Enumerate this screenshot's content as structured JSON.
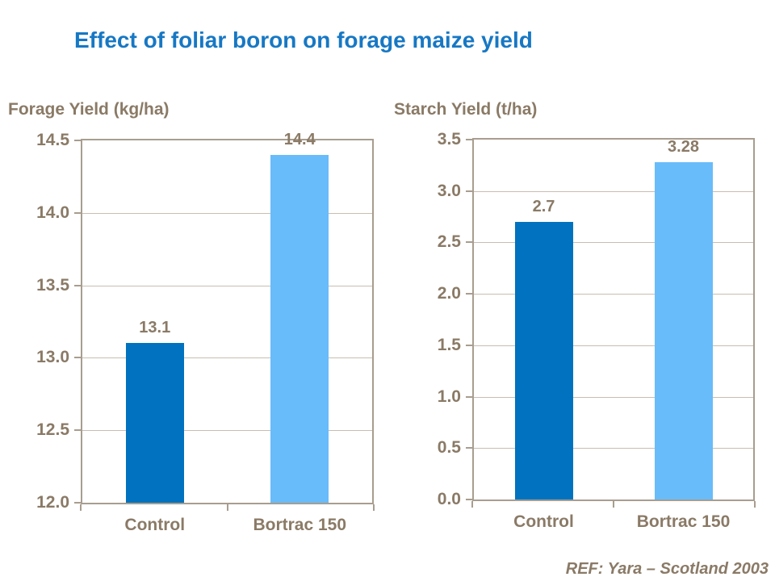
{
  "title": {
    "text": "Effect of foliar boron on forage maize yield",
    "color": "#1778c4"
  },
  "footer": {
    "ref": "REF: Yara – Scotland 2003"
  },
  "colors": {
    "control_bar": "#0072bf",
    "bortrac_bar": "#68bcfa",
    "axis_text": "#8a7a66",
    "axis_line": "#a89d8f",
    "gridline": "#c8beb1",
    "title_blue": "#1778c4"
  },
  "chart_data": [
    {
      "type": "bar",
      "title": "Forage Yield (kg/ha)",
      "categories": [
        "Control",
        "Bortrac 150"
      ],
      "values": [
        13.1,
        14.4
      ],
      "value_labels": [
        "13.1",
        "14.4"
      ],
      "bar_colors": [
        "#0072bf",
        "#68bcfa"
      ],
      "xlabel": "",
      "ylabel": "Forage Yield (kg/ha)",
      "ylim": [
        12.0,
        14.5
      ],
      "ytick_step": 0.5,
      "ytick_labels": [
        "12.0",
        "12.5",
        "13.0",
        "13.5",
        "14.0",
        "14.5"
      ],
      "grid": true,
      "legend": "none"
    },
    {
      "type": "bar",
      "title": "Starch Yield (t/ha)",
      "categories": [
        "Control",
        "Bortrac 150"
      ],
      "values": [
        2.7,
        3.28
      ],
      "value_labels": [
        "2.7",
        "3.28"
      ],
      "bar_colors": [
        "#0072bf",
        "#68bcfa"
      ],
      "xlabel": "",
      "ylabel": "Starch Yield (t/ha)",
      "ylim": [
        0.0,
        3.5
      ],
      "ytick_step": 0.5,
      "ytick_labels": [
        "0.0",
        "0.5",
        "1.0",
        "1.5",
        "2.0",
        "2.5",
        "3.0",
        "3.5"
      ],
      "grid": true,
      "legend": "none"
    }
  ]
}
